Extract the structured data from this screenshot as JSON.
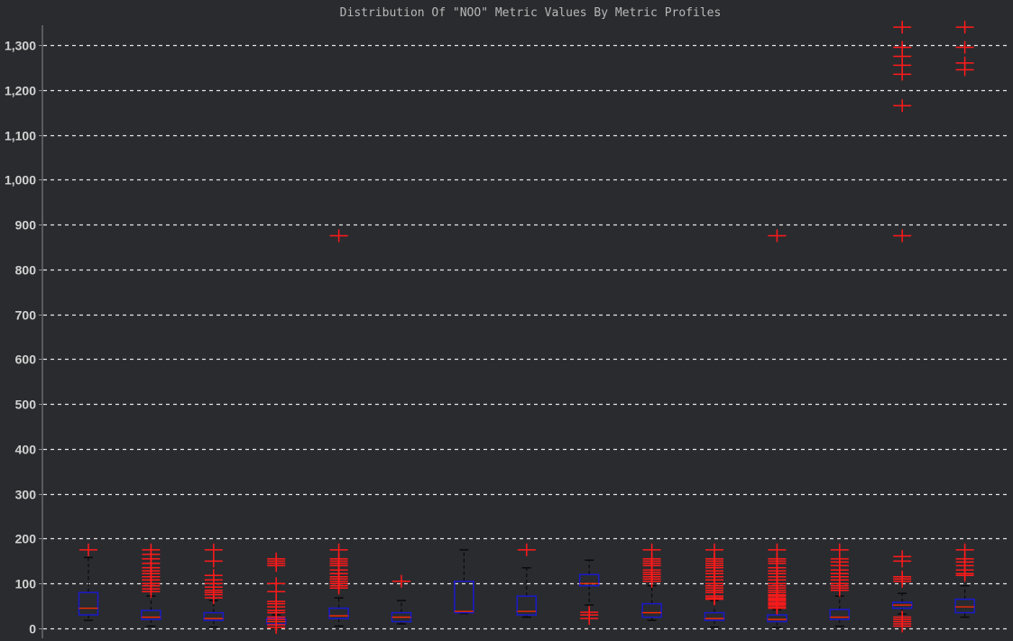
{
  "chart_data": {
    "type": "box",
    "title": "Distribution Of \"NOO\" Metric Values By Metric Profiles",
    "xlabel": "",
    "ylabel": "",
    "ylim": [
      -10,
      1360
    ],
    "yticks": [
      0,
      100,
      200,
      300,
      400,
      500,
      600,
      700,
      800,
      900,
      1000,
      1100,
      1200,
      1300
    ],
    "ytick_labels": [
      "0",
      "100",
      "200",
      "300",
      "400",
      "500",
      "600",
      "700",
      "800",
      "900",
      "1,000",
      "1,100",
      "1,200",
      "1,300"
    ],
    "grid": true,
    "colors": {
      "background": "#2a2b2f",
      "grid": "#e6e6e6",
      "box": "#1a1acc",
      "median": "#ff2a00",
      "whisker": "#0a0a0a",
      "outlier": "#ff1a1a",
      "axis": "#8a8a8a"
    },
    "boxes": [
      {
        "q1": 30,
        "median": 45,
        "q3": 80,
        "whisker_low": 18,
        "whisker_high": 158,
        "outliers": [
          175
        ]
      },
      {
        "q1": 20,
        "median": 25,
        "q3": 40,
        "whisker_low": 5,
        "whisker_high": 72,
        "outliers": [
          82,
          88,
          95,
          100,
          108,
          115,
          122,
          128,
          135,
          145,
          155,
          165,
          175
        ]
      },
      {
        "q1": 18,
        "median": 22,
        "q3": 35,
        "whisker_low": 3,
        "whisker_high": 62,
        "outliers": [
          68,
          75,
          80,
          85,
          92,
          100,
          108,
          118,
          150,
          175
        ]
      },
      {
        "q1": 10,
        "median": 15,
        "q3": 22,
        "whisker_low": 0,
        "whisker_high": 30,
        "outliers": [
          2,
          8,
          20,
          25,
          35,
          40,
          48,
          55,
          60,
          82,
          100,
          140,
          145,
          150,
          155
        ]
      },
      {
        "q1": 22,
        "median": 28,
        "q3": 45,
        "whisker_low": 5,
        "whisker_high": 68,
        "outliers": [
          90,
          95,
          100,
          105,
          110,
          115,
          122,
          130,
          140,
          145,
          150,
          155,
          175,
          875
        ]
      },
      {
        "q1": 15,
        "median": 25,
        "q3": 35,
        "whisker_low": 10,
        "whisker_high": 62,
        "outliers": [
          105
        ]
      },
      {
        "q1": 35,
        "median": 38,
        "q3": 105,
        "whisker_low": 33,
        "whisker_high": 175,
        "outliers": []
      },
      {
        "q1": 30,
        "median": 38,
        "q3": 72,
        "whisker_low": 25,
        "whisker_high": 135,
        "outliers": [
          175
        ]
      },
      {
        "q1": 95,
        "median": 100,
        "q3": 120,
        "whisker_low": 52,
        "whisker_high": 152,
        "outliers": [
          22,
          30,
          36
        ]
      },
      {
        "q1": 25,
        "median": 35,
        "q3": 55,
        "whisker_low": 18,
        "whisker_high": 95,
        "outliers": [
          105,
          110,
          115,
          120,
          125,
          130,
          140,
          145,
          150,
          155,
          175
        ]
      },
      {
        "q1": 18,
        "median": 22,
        "q3": 35,
        "whisker_low": 3,
        "whisker_high": 62,
        "outliers": [
          65,
          68,
          72,
          80,
          85,
          90,
          95,
          100,
          108,
          115,
          122,
          128,
          135,
          140,
          145,
          150,
          155,
          175
        ]
      },
      {
        "q1": 15,
        "median": 20,
        "q3": 30,
        "whisker_low": 2,
        "whisker_high": 42,
        "outliers": [
          45,
          48,
          52,
          55,
          58,
          62,
          65,
          68,
          72,
          75,
          80,
          85,
          90,
          95,
          100,
          108,
          115,
          122,
          128,
          135,
          145,
          150,
          155,
          175,
          875
        ]
      },
      {
        "q1": 20,
        "median": 25,
        "q3": 42,
        "whisker_low": 5,
        "whisker_high": 72,
        "outliers": [
          85,
          90,
          95,
          100,
          108,
          115,
          122,
          130,
          140,
          148,
          155,
          175
        ]
      },
      {
        "q1": 45,
        "median": 52,
        "q3": 58,
        "whisker_low": 32,
        "whisker_high": 78,
        "outliers": [
          5,
          10,
          15,
          20,
          25,
          105,
          110,
          115,
          150,
          160,
          875,
          1165,
          1235,
          1255,
          1275,
          1295,
          1340
        ]
      },
      {
        "q1": 35,
        "median": 48,
        "q3": 65,
        "whisker_low": 25,
        "whisker_high": 95,
        "outliers": [
          118,
          122,
          130,
          140,
          148,
          155,
          175,
          1245,
          1260,
          1295,
          1340
        ]
      }
    ]
  }
}
